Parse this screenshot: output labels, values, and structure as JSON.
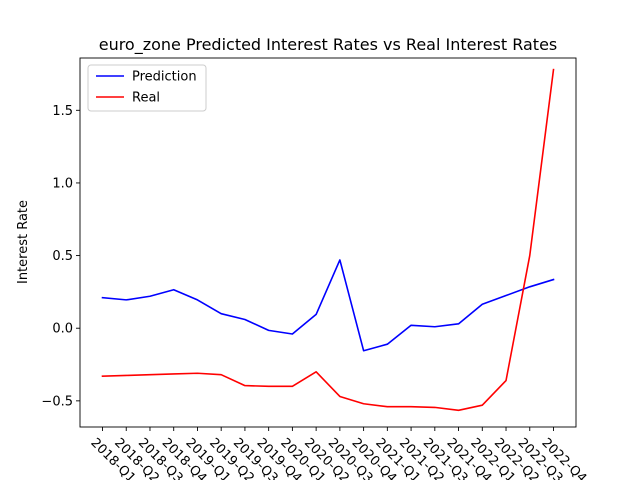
{
  "chart_data": {
    "type": "line",
    "title": "euro_zone Predicted Interest Rates vs Real Interest Rates",
    "xlabel": "",
    "ylabel": "Interest Rate",
    "categories": [
      "2018-Q1",
      "2018-Q2",
      "2018-Q3",
      "2018-Q4",
      "2019-Q1",
      "2019-Q2",
      "2019-Q3",
      "2019-Q4",
      "2020-Q1",
      "2020-Q2",
      "2020-Q3",
      "2020-Q4",
      "2021-Q1",
      "2021-Q2",
      "2021-Q3",
      "2021-Q4",
      "2022-Q1",
      "2022-Q2",
      "2022-Q3",
      "2022-Q4"
    ],
    "ylim": [
      -0.68,
      1.86
    ],
    "yticks": [
      -0.5,
      0.0,
      0.5,
      1.0,
      1.5
    ],
    "ytick_labels": [
      "−0.5",
      "0.0",
      "0.5",
      "1.0",
      "1.5"
    ],
    "grid": false,
    "legend": "top-left",
    "series": [
      {
        "name": "Prediction",
        "color": "#0000ff",
        "values": [
          0.21,
          0.195,
          0.22,
          0.265,
          0.195,
          0.1,
          0.06,
          -0.015,
          -0.04,
          0.095,
          0.47,
          -0.155,
          -0.11,
          0.02,
          0.01,
          0.03,
          0.165,
          0.225,
          0.285,
          0.335
        ]
      },
      {
        "name": "Real",
        "color": "#ff0000",
        "values": [
          -0.33,
          -0.325,
          -0.32,
          -0.315,
          -0.31,
          -0.32,
          -0.395,
          -0.4,
          -0.4,
          -0.3,
          -0.47,
          -0.52,
          -0.54,
          -0.54,
          -0.545,
          -0.565,
          -0.53,
          -0.36,
          0.5,
          1.78
        ]
      }
    ]
  }
}
